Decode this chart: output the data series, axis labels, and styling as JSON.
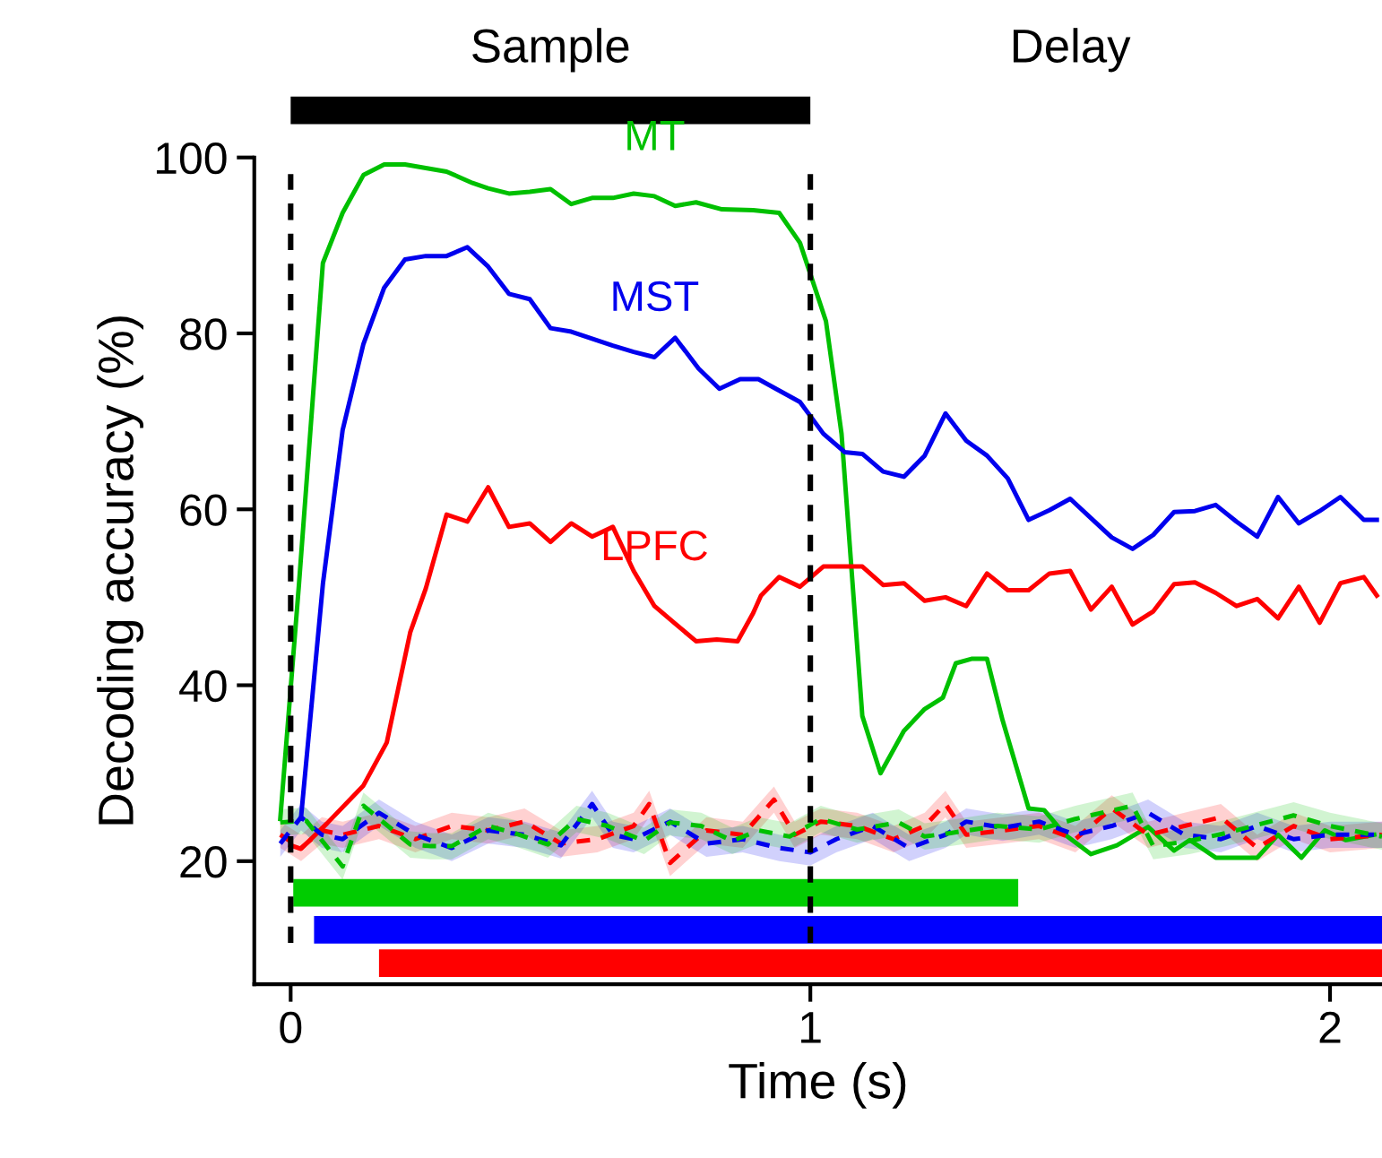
{
  "chart_data": {
    "type": "line",
    "xlabel": "Time (s)",
    "ylabel": "Decoding accuracy (%)",
    "xlim": [
      -0.07,
      2.1
    ],
    "ylim": [
      6,
      100
    ],
    "xticks": [
      0,
      1,
      2
    ],
    "yticks": [
      20,
      40,
      60,
      80,
      100
    ],
    "grid": false,
    "legend": false,
    "marker": "none",
    "ref_lines": [
      {
        "axis": "x",
        "value": 0,
        "color": "#000000",
        "line_style": "dashed"
      },
      {
        "axis": "x",
        "value": 1,
        "color": "#000000",
        "line_style": "dashed"
      }
    ],
    "annotations": [
      "Sample",
      "Delay"
    ],
    "series": [
      {
        "name": "MT",
        "color": "#00c000",
        "line_style": "solid",
        "x": [
          -0.02,
          0.016,
          0.062,
          0.1,
          0.14,
          0.18,
          0.22,
          0.26,
          0.3,
          0.35,
          0.38,
          0.42,
          0.46,
          0.5,
          0.54,
          0.58,
          0.62,
          0.66,
          0.7,
          0.74,
          0.78,
          0.83,
          0.89,
          0.94,
          0.98,
          1.03,
          1.06,
          1.1,
          1.135,
          1.18,
          1.22,
          1.255,
          1.28,
          1.31,
          1.34,
          1.37,
          1.42,
          1.45,
          1.49,
          1.54,
          1.59,
          1.65,
          1.7,
          1.73,
          1.78,
          1.86,
          1.9,
          1.945,
          1.99,
          2.03,
          2.085
        ],
        "values": [
          24.8,
          51.5,
          88,
          93.7,
          98,
          99.2,
          99.2,
          98.8,
          98.4,
          97.1,
          96.5,
          95.9,
          96.1,
          96.4,
          94.7,
          95.4,
          95.4,
          95.9,
          95.6,
          94.5,
          94.9,
          94.1,
          94.0,
          93.7,
          90.3,
          81.4,
          68.6,
          36.5,
          30,
          34.8,
          37.3,
          38.6,
          42.5,
          43,
          43,
          36,
          26,
          25.8,
          23,
          20.8,
          21.8,
          23.9,
          21.2,
          22.4,
          20.4,
          20.4,
          23,
          20.4,
          23.5,
          22.4,
          23
        ]
      },
      {
        "name": "MST",
        "color": "#0000ee",
        "line_style": "solid",
        "x": [
          0.02,
          0.062,
          0.1,
          0.14,
          0.18,
          0.22,
          0.26,
          0.3,
          0.34,
          0.38,
          0.42,
          0.46,
          0.5,
          0.54,
          0.58,
          0.62,
          0.66,
          0.7,
          0.74,
          0.785,
          0.825,
          0.865,
          0.9,
          0.94,
          0.98,
          1.025,
          1.066,
          1.1,
          1.14,
          1.18,
          1.22,
          1.26,
          1.3,
          1.34,
          1.38,
          1.42,
          1.46,
          1.5,
          1.54,
          1.58,
          1.62,
          1.66,
          1.7,
          1.74,
          1.78,
          1.82,
          1.86,
          1.9,
          1.94,
          1.98,
          2.02,
          2.065,
          2.09
        ],
        "values": [
          25,
          51.5,
          69,
          78.8,
          85.2,
          88.4,
          88.8,
          88.8,
          89.8,
          87.6,
          84.5,
          83.9,
          80.6,
          80.2,
          79.4,
          78.6,
          77.9,
          77.3,
          79.5,
          76,
          73.7,
          74.8,
          74.8,
          73.5,
          72.2,
          68.6,
          66.5,
          66.3,
          64.3,
          63.7,
          66.1,
          70.9,
          67.8,
          66.1,
          63.5,
          58.8,
          59.9,
          61.2,
          59,
          56.8,
          55.5,
          57.1,
          59.7,
          59.8,
          60.5,
          58.6,
          56.9,
          61.4,
          58.4,
          59.8,
          61.4,
          58.8,
          58.8
        ]
      },
      {
        "name": "LPFC",
        "color": "#ff0000",
        "line_style": "solid",
        "x": [
          0,
          0.02,
          0.07,
          0.14,
          0.185,
          0.23,
          0.26,
          0.3,
          0.34,
          0.38,
          0.42,
          0.46,
          0.5,
          0.54,
          0.58,
          0.62,
          0.66,
          0.7,
          0.74,
          0.78,
          0.82,
          0.86,
          0.89,
          0.905,
          0.94,
          0.98,
          1.025,
          1.1,
          1.14,
          1.18,
          1.22,
          1.26,
          1.3,
          1.34,
          1.38,
          1.42,
          1.46,
          1.5,
          1.54,
          1.58,
          1.62,
          1.66,
          1.7,
          1.74,
          1.78,
          1.82,
          1.86,
          1.9,
          1.94,
          1.98,
          2.02,
          2.065,
          2.09
        ],
        "values": [
          21.8,
          21.4,
          24.3,
          28.6,
          33.5,
          46,
          51,
          59.4,
          58.6,
          62.5,
          58,
          58.4,
          56.3,
          58.4,
          56.9,
          58,
          53,
          49,
          47,
          45,
          45.2,
          45,
          48.2,
          50.2,
          52.3,
          51.2,
          53.5,
          53.5,
          51.4,
          51.6,
          49.6,
          50,
          49,
          52.7,
          50.8,
          50.8,
          52.7,
          53,
          48.6,
          51.2,
          46.9,
          48.4,
          51.5,
          51.7,
          50.5,
          49,
          49.8,
          47.6,
          51.2,
          47.1,
          51.6,
          52.3,
          50.2
        ]
      },
      {
        "color": "#ff0000",
        "line_style": "dashed",
        "x": [
          -0.02,
          0.02,
          0.06,
          0.1,
          0.17,
          0.24,
          0.31,
          0.38,
          0.45,
          0.52,
          0.59,
          0.66,
          0.69,
          0.73,
          0.8,
          0.87,
          0.93,
          0.97,
          1.02,
          1.09,
          1.16,
          1.22,
          1.26,
          1.3,
          1.37,
          1.44,
          1.51,
          1.58,
          1.65,
          1.72,
          1.79,
          1.86,
          1.93,
          2.0,
          2.1
        ],
        "values": [
          23,
          21.5,
          23.5,
          23,
          24,
          22.5,
          24,
          23.5,
          24.5,
          22,
          22.5,
          24,
          26.5,
          19.8,
          23.5,
          23,
          27,
          23,
          24.5,
          24,
          22.5,
          24,
          26.5,
          23,
          23.5,
          24,
          22.5,
          26,
          23,
          24,
          25,
          21.5,
          24,
          22.5,
          23
        ],
        "lower": [
          21.5,
          20,
          22,
          21.5,
          22.5,
          21,
          22.5,
          22,
          23,
          20.5,
          21,
          22.5,
          25,
          18.3,
          22,
          21.5,
          25.5,
          21.5,
          23,
          22.5,
          21,
          22.5,
          25,
          21.5,
          22,
          22.5,
          21,
          24.5,
          21.5,
          22.5,
          23.5,
          20,
          22.5,
          21,
          21.5
        ],
        "upper": [
          24.5,
          23,
          25,
          24.5,
          25.5,
          24,
          25.5,
          25,
          26,
          23.5,
          24,
          25.5,
          28,
          21.3,
          25,
          24.5,
          28.5,
          24.5,
          26,
          25.5,
          24,
          25.5,
          28,
          24.5,
          25,
          25.5,
          24,
          27.5,
          24.5,
          25.5,
          26.5,
          23,
          25.5,
          24,
          24.5
        ]
      },
      {
        "color": "#0000ee",
        "line_style": "dashed",
        "x": [
          -0.02,
          0.02,
          0.06,
          0.1,
          0.17,
          0.24,
          0.31,
          0.38,
          0.45,
          0.52,
          0.58,
          0.62,
          0.66,
          0.73,
          0.8,
          0.87,
          0.94,
          1.0,
          1.05,
          1.12,
          1.19,
          1.26,
          1.3,
          1.37,
          1.44,
          1.51,
          1.58,
          1.65,
          1.72,
          1.79,
          1.86,
          1.93,
          2.0,
          2.1
        ],
        "values": [
          22,
          25,
          23,
          22.5,
          25.5,
          23,
          21.5,
          23.5,
          23,
          21.8,
          26.5,
          23,
          22.5,
          24.5,
          22,
          22.5,
          21.5,
          21,
          22.5,
          24,
          21.5,
          23,
          24.5,
          23.8,
          24.5,
          23,
          24,
          25.5,
          23,
          22.5,
          24,
          22.5,
          23,
          23
        ],
        "lower": [
          20.5,
          23.5,
          21.5,
          21,
          24,
          21.5,
          20,
          22,
          21.5,
          20.3,
          25,
          21.5,
          21,
          23,
          20.5,
          21,
          20,
          19.5,
          21,
          22.5,
          20,
          21.5,
          23,
          22.3,
          23,
          21.5,
          22.5,
          24,
          21.5,
          21,
          22.5,
          21,
          21.5,
          21.5
        ],
        "upper": [
          23.5,
          26.5,
          24.5,
          24,
          27,
          24.5,
          23,
          25,
          24.5,
          23.3,
          28,
          24.5,
          24,
          26,
          23.5,
          24,
          23,
          22.5,
          24,
          25.5,
          23,
          24.5,
          26,
          25.3,
          26,
          24.5,
          25.5,
          27,
          24.5,
          24,
          25.5,
          24,
          24.5,
          24.5
        ]
      },
      {
        "color": "#00c000",
        "line_style": "dashed",
        "x": [
          -0.02,
          0.03,
          0.1,
          0.14,
          0.23,
          0.27,
          0.31,
          0.38,
          0.43,
          0.495,
          0.55,
          0.61,
          0.68,
          0.73,
          0.79,
          0.85,
          0.9,
          0.96,
          1.02,
          1.09,
          1.17,
          1.22,
          1.27,
          1.36,
          1.44,
          1.51,
          1.62,
          1.66,
          1.73,
          1.8,
          1.93,
          2.0,
          2.1
        ],
        "values": [
          24.4,
          24.6,
          19.4,
          26.3,
          21.9,
          21.7,
          21.7,
          24,
          23.2,
          21.9,
          24.8,
          24,
          22.3,
          24.4,
          24,
          22.3,
          23.5,
          22.8,
          24.8,
          23.6,
          24.4,
          22.8,
          23.2,
          24,
          23.6,
          24.8,
          26.3,
          21.7,
          22.3,
          23.2,
          25.2,
          24,
          22.8
        ],
        "lower": [
          22.9,
          23.1,
          17.9,
          24.8,
          20.4,
          20.2,
          20.2,
          22.5,
          21.7,
          20.4,
          23.3,
          22.5,
          20.8,
          22.9,
          22.5,
          20.8,
          22,
          21.3,
          23.3,
          22.1,
          22.9,
          21.3,
          21.7,
          22.5,
          22.1,
          23.3,
          24.8,
          20.2,
          20.8,
          21.7,
          23.7,
          22.5,
          21.3
        ],
        "upper": [
          25.9,
          26.1,
          20.9,
          27.8,
          23.4,
          23.2,
          23.2,
          25.5,
          24.7,
          23.4,
          26.3,
          25.5,
          23.8,
          25.9,
          25.5,
          23.8,
          25,
          24.3,
          26.3,
          25.1,
          25.9,
          24.3,
          24.7,
          25.5,
          25.1,
          26.3,
          27.8,
          23.2,
          23.8,
          24.7,
          26.7,
          25.5,
          24.3
        ]
      },
      {
        "color": "#00cc00",
        "line_style": "solid",
        "x": [
          0.005,
          1.4
        ],
        "values": [
          16.4,
          16.4
        ]
      },
      {
        "color": "#0000ff",
        "line_style": "solid",
        "x": [
          0.045,
          2.1
        ],
        "values": [
          12.2,
          12.2
        ]
      },
      {
        "color": "#ff0000",
        "line_style": "solid",
        "x": [
          0.17,
          2.1
        ],
        "values": [
          8.4,
          8.4
        ]
      }
    ]
  }
}
